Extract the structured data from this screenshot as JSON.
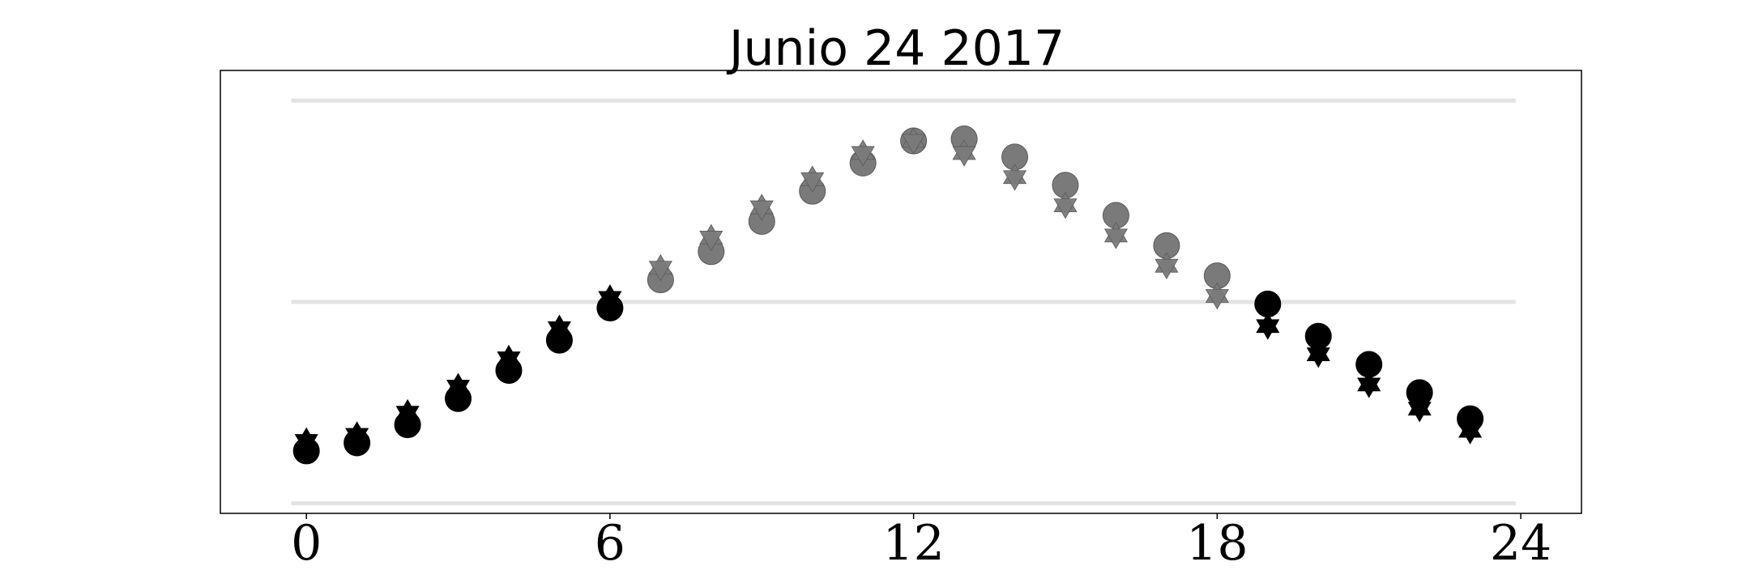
{
  "chart_data": {
    "type": "scatter",
    "title": "Junio 24 2017",
    "xlabel": "",
    "ylabel": "",
    "xlim": [
      -1.7,
      25.2
    ],
    "ylim": [
      -0.05,
      2.15
    ],
    "x_ticks": [
      0,
      6,
      12,
      18,
      24
    ],
    "x_tick_labels": [
      "0",
      "6",
      "12",
      "18",
      "24"
    ],
    "gridlines_y": [
      0,
      1,
      2
    ],
    "y_axis_labels_shown": false,
    "series": [
      {
        "marker": "circle",
        "x": [
          0,
          1,
          2,
          3,
          4,
          5,
          6,
          7,
          8,
          9,
          10,
          11,
          12,
          13,
          14,
          15,
          16,
          17,
          18,
          19,
          20,
          21,
          22,
          23
        ],
        "y": [
          0.26,
          0.3,
          0.39,
          0.52,
          0.66,
          0.81,
          0.97,
          1.11,
          1.25,
          1.4,
          1.55,
          1.69,
          1.8,
          1.81,
          1.72,
          1.58,
          1.43,
          1.28,
          1.13,
          0.99,
          0.83,
          0.69,
          0.55,
          0.42
        ]
      },
      {
        "marker": "star",
        "x": [
          0,
          1,
          2,
          3,
          4,
          5,
          6,
          7,
          8,
          9,
          10,
          11,
          12,
          13,
          14,
          15,
          16,
          17,
          18,
          19,
          20,
          21,
          22,
          23
        ],
        "y": [
          0.31,
          0.34,
          0.45,
          0.58,
          0.72,
          0.87,
          1.02,
          1.17,
          1.32,
          1.47,
          1.61,
          1.74,
          1.8,
          1.74,
          1.62,
          1.48,
          1.33,
          1.18,
          1.03,
          0.88,
          0.74,
          0.59,
          0.47,
          0.36
        ]
      }
    ],
    "colors": {
      "night": "#000000",
      "day": "#7a7a7a",
      "day_edge": "#5a5a5a",
      "grid": "#e3e3e3",
      "axes_edge": "#000000"
    },
    "day_hours_range": [
      7,
      18
    ]
  }
}
